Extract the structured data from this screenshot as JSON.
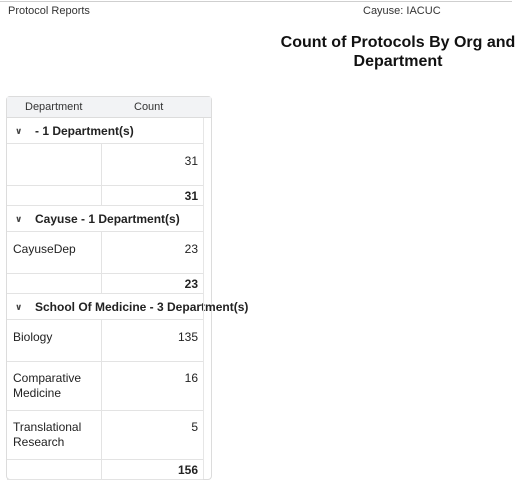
{
  "header": {
    "app_label": "Protocol Reports",
    "context_label": "Cayuse: IACUC"
  },
  "report": {
    "title": "Count of Protocols By Org and Department"
  },
  "table": {
    "columns": [
      "Department",
      "Count"
    ],
    "groups": [
      {
        "label": " - 1 Department(s)",
        "expanded": true,
        "rows": [
          {
            "department": "",
            "count": "31"
          }
        ],
        "total": "31"
      },
      {
        "label": "Cayuse - 1 Department(s)",
        "expanded": true,
        "rows": [
          {
            "department": "CayuseDep",
            "count": "23"
          }
        ],
        "total": "23"
      },
      {
        "label": "School Of Medicine - 3 Department(s)",
        "expanded": true,
        "rows": [
          {
            "department": "Biology",
            "count": "135"
          },
          {
            "department": "Comparative Medicine",
            "count": "16"
          },
          {
            "department": "Translational Research",
            "count": "5"
          }
        ],
        "total": "156"
      }
    ]
  },
  "icons": {
    "expand": "chevron-down-icon"
  }
}
